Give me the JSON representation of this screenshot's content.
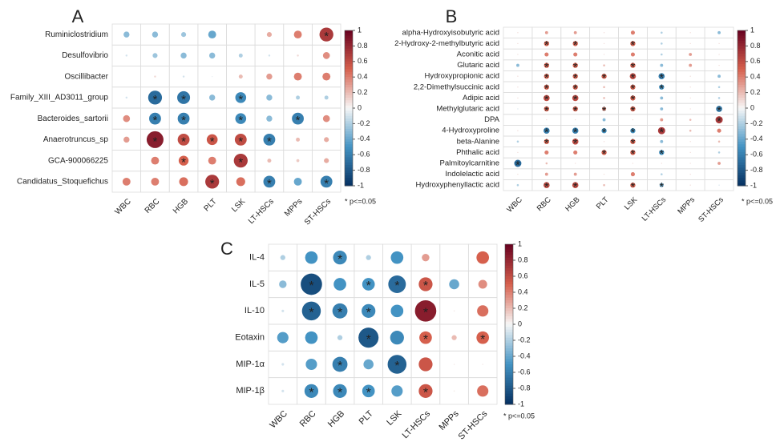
{
  "chart_data": [
    {
      "type": "corrplot",
      "panel_label": "A",
      "rows": [
        "Ruminiclostridium",
        "Desulfovibrio",
        "Oscillibacter",
        "Family_XIII_AD3011_group",
        "Bacteroides_sartorii",
        "Anaerotruncus_sp",
        "GCA-900066225",
        "Candidatus_Stoquefichus"
      ],
      "columns": [
        "WBC",
        "RBC",
        "HGB",
        "PLT",
        "LSK",
        "LT-HSCs",
        "MPPs",
        "ST-HSCs"
      ],
      "values": [
        [
          -0.3,
          -0.3,
          -0.25,
          -0.4,
          0,
          0.25,
          0.4,
          0.7
        ],
        [
          -0.1,
          -0.25,
          -0.3,
          -0.3,
          -0.2,
          -0.1,
          0.1,
          0.35
        ],
        [
          0,
          0.1,
          -0.1,
          -0.05,
          0.2,
          0.3,
          0.4,
          0.4
        ],
        [
          -0.1,
          -0.7,
          -0.65,
          -0.3,
          -0.55,
          -0.3,
          -0.2,
          -0.2
        ],
        [
          0.35,
          -0.6,
          -0.6,
          0,
          -0.55,
          -0.3,
          -0.6,
          0.35
        ],
        [
          0.3,
          0.85,
          0.6,
          0.55,
          0.6,
          -0.6,
          0.2,
          0.25
        ],
        [
          0,
          0.4,
          0.5,
          0.4,
          0.7,
          0.2,
          0.15,
          0.25
        ],
        [
          0.4,
          0.4,
          0.45,
          0.7,
          0.45,
          -0.6,
          -0.4,
          -0.6
        ]
      ],
      "significant": [
        [
          false,
          false,
          false,
          false,
          false,
          false,
          false,
          true
        ],
        [
          false,
          false,
          false,
          false,
          false,
          false,
          false,
          false
        ],
        [
          false,
          false,
          false,
          false,
          false,
          false,
          false,
          false
        ],
        [
          false,
          true,
          true,
          false,
          true,
          false,
          false,
          false
        ],
        [
          false,
          true,
          true,
          false,
          true,
          false,
          true,
          false
        ],
        [
          false,
          true,
          true,
          true,
          true,
          true,
          false,
          false
        ],
        [
          false,
          false,
          true,
          false,
          true,
          false,
          false,
          false
        ],
        [
          false,
          false,
          false,
          true,
          false,
          true,
          false,
          true
        ]
      ],
      "star": "*",
      "note": "* p<=0.05",
      "colorlim": [
        -1,
        1
      ],
      "colorticks": [
        1,
        0.8,
        0.6,
        0.4,
        0.2,
        0,
        -0.2,
        -0.4,
        -0.6,
        -0.8,
        -1
      ],
      "colors": [
        "#053061",
        "#4393c3",
        "#f7f7f7",
        "#d6604d",
        "#67001f"
      ]
    },
    {
      "type": "corrplot",
      "panel_label": "B",
      "rows": [
        "alpha-Hydroxyisobutyric acid",
        "2-Hydroxy-2-methylbutyric acid",
        "Aconitic acid",
        "Glutaric acid",
        "Hydroxypropionic acid",
        "2,2-Dimethylsuccinic acid",
        "Adipic acid",
        "Methylglutaric acid",
        "DPA",
        "4-Hydroxyproline",
        "beta-Alanine",
        "Phthalic acid",
        "Palmitoylcarnitine",
        "Indolelactic acid",
        "Hydroxyphenyllactic acid"
      ],
      "columns": [
        "WBC",
        "RBC",
        "HGB",
        "PLT",
        "LSK",
        "LT-HSCs",
        "MPPs",
        "ST-HSCs"
      ],
      "values": [
        [
          0.1,
          0.3,
          0.3,
          0.1,
          0.4,
          -0.2,
          0.1,
          -0.3
        ],
        [
          0.1,
          0.5,
          0.5,
          0.1,
          0.5,
          -0.2,
          0.1,
          0.1
        ],
        [
          0.1,
          0.4,
          0.4,
          0.1,
          0.4,
          -0.2,
          0.3,
          0.1
        ],
        [
          -0.3,
          0.5,
          0.5,
          0.2,
          0.5,
          -0.3,
          0.3,
          0.1
        ],
        [
          0.1,
          0.5,
          0.5,
          0.5,
          0.6,
          -0.6,
          0.1,
          -0.3
        ],
        [
          0.1,
          0.5,
          0.5,
          0.2,
          0.5,
          -0.5,
          0.1,
          -0.2
        ],
        [
          0.1,
          0.6,
          0.6,
          0.2,
          0.5,
          -0.3,
          0.1,
          -0.2
        ],
        [
          -0.1,
          0.5,
          0.5,
          0.4,
          0.5,
          -0.3,
          0.1,
          -0.6
        ],
        [
          0,
          0.1,
          0.1,
          -0.3,
          0.1,
          0.3,
          0.2,
          0.7
        ],
        [
          0.1,
          -0.6,
          -0.6,
          -0.5,
          -0.5,
          0.7,
          0.2,
          0.4
        ],
        [
          -0.2,
          0.5,
          0.6,
          0.1,
          0.5,
          -0.3,
          0.1,
          0.2
        ],
        [
          0.1,
          0.4,
          0.4,
          0.5,
          0.5,
          -0.5,
          0.1,
          -0.2
        ],
        [
          -0.7,
          0.2,
          0.1,
          0,
          0.1,
          0.1,
          0.1,
          0.3
        ],
        [
          0.1,
          0.3,
          0.3,
          0.1,
          0.4,
          -0.2,
          0.1,
          0
        ],
        [
          -0.2,
          0.6,
          0.6,
          0.2,
          0.5,
          -0.4,
          0.1,
          -0.1
        ]
      ],
      "significant": [
        [
          false,
          false,
          false,
          false,
          false,
          false,
          false,
          false
        ],
        [
          false,
          true,
          true,
          false,
          true,
          false,
          false,
          false
        ],
        [
          false,
          false,
          false,
          false,
          false,
          false,
          false,
          false
        ],
        [
          false,
          true,
          true,
          false,
          true,
          false,
          false,
          false
        ],
        [
          false,
          true,
          true,
          true,
          true,
          true,
          false,
          false
        ],
        [
          false,
          true,
          true,
          false,
          true,
          true,
          false,
          false
        ],
        [
          false,
          true,
          true,
          false,
          true,
          false,
          false,
          false
        ],
        [
          false,
          true,
          true,
          true,
          true,
          false,
          false,
          true
        ],
        [
          false,
          false,
          false,
          false,
          false,
          false,
          false,
          true
        ],
        [
          false,
          true,
          true,
          true,
          true,
          true,
          false,
          false
        ],
        [
          false,
          true,
          true,
          false,
          true,
          false,
          false,
          false
        ],
        [
          false,
          false,
          false,
          true,
          true,
          true,
          false,
          false
        ],
        [
          true,
          false,
          false,
          false,
          false,
          false,
          false,
          false
        ],
        [
          false,
          false,
          false,
          false,
          false,
          false,
          false,
          false
        ],
        [
          false,
          true,
          true,
          false,
          true,
          true,
          false,
          false
        ]
      ],
      "star": "*",
      "note": "* p<=0.05",
      "colorlim": [
        -1,
        1
      ],
      "colorticks": [
        1,
        0.8,
        0.6,
        0.4,
        0.2,
        0,
        -0.2,
        -0.4,
        -0.6,
        -0.8,
        -1
      ],
      "colors": [
        "#053061",
        "#4393c3",
        "#f7f7f7",
        "#d6604d",
        "#67001f"
      ]
    },
    {
      "type": "corrplot",
      "panel_label": "C",
      "rows": [
        "IL-4",
        "IL-5",
        "IL-10",
        "Eotaxin",
        "MIP-1α",
        "MIP-1β"
      ],
      "columns": [
        "WBC",
        "RBC",
        "HGB",
        "PLT",
        "LSK",
        "LT-HSCs",
        "MPPs",
        "ST-HSCs"
      ],
      "values": [
        [
          -0.2,
          -0.5,
          -0.55,
          -0.2,
          -0.5,
          0.3,
          0,
          0.5
        ],
        [
          -0.3,
          -0.85,
          -0.5,
          -0.5,
          -0.7,
          0.55,
          -0.4,
          0.35
        ],
        [
          -0.1,
          -0.75,
          -0.6,
          -0.55,
          -0.5,
          0.85,
          0.05,
          0.45
        ],
        [
          -0.45,
          -0.5,
          -0.2,
          -0.8,
          -0.55,
          0.5,
          0.2,
          0.5
        ],
        [
          -0.1,
          -0.45,
          -0.6,
          -0.4,
          -0.75,
          0.55,
          0.05,
          0.05
        ],
        [
          -0.1,
          -0.55,
          -0.55,
          -0.5,
          -0.45,
          0.55,
          0.05,
          0.45
        ]
      ],
      "significant": [
        [
          false,
          false,
          true,
          false,
          false,
          false,
          false,
          false
        ],
        [
          false,
          true,
          false,
          true,
          true,
          true,
          false,
          false
        ],
        [
          false,
          true,
          true,
          true,
          false,
          true,
          false,
          false
        ],
        [
          false,
          false,
          false,
          true,
          false,
          true,
          false,
          true
        ],
        [
          false,
          false,
          true,
          false,
          true,
          false,
          false,
          false
        ],
        [
          false,
          true,
          true,
          true,
          false,
          true,
          false,
          false
        ]
      ],
      "star": "*",
      "note": "* p<=0.05",
      "colorlim": [
        -1,
        1
      ],
      "colorticks": [
        1,
        0.8,
        0.6,
        0.4,
        0.2,
        0,
        -0.2,
        -0.4,
        -0.6,
        -0.8,
        -1
      ],
      "colors": [
        "#053061",
        "#4393c3",
        "#f7f7f7",
        "#d6604d",
        "#67001f"
      ]
    }
  ]
}
